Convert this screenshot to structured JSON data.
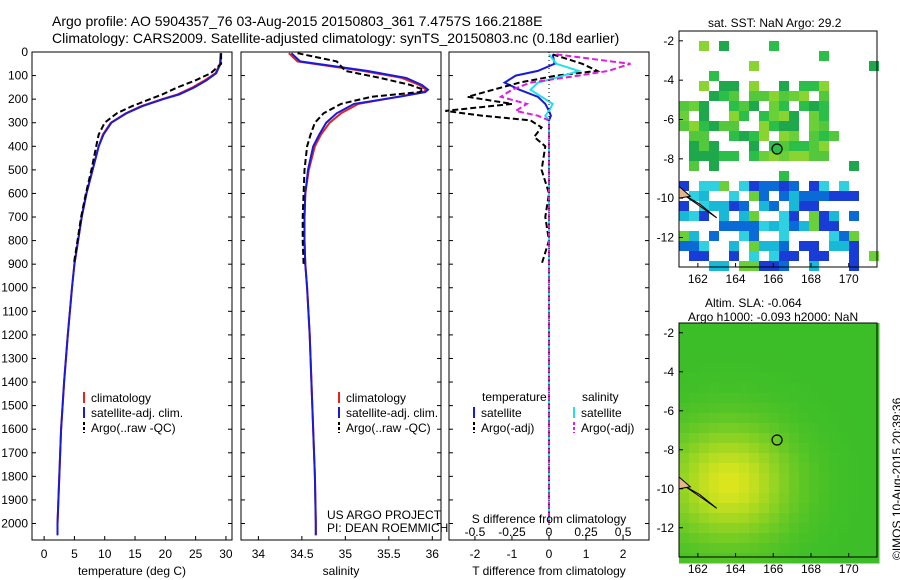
{
  "header": {
    "line1": "Argo profile: AO 5904357_76 03-Aug-2015 20150803_361 7.4757S 166.2188E",
    "line2": "Climatology: CARS2009. Satellite-adjusted climatology: synTS_20150803.nc (0.18d earlier)"
  },
  "sst_title": "sat. SST: NaN Argo: 29.2",
  "sla_title1": "Altim. SLA: -0.064",
  "sla_title2": "Argo h1000: -0.093 h2000: NaN",
  "stamp": "©IMOS 10-Aug-2015 20:39:36",
  "credit": {
    "line1": "US ARGO PROJECT",
    "line2": "PI: DEAN ROEMMICH"
  },
  "legends": {
    "profile": [
      "climatology",
      "satellite-adj. clim.",
      "Argo(..raw -QC)"
    ],
    "diff": {
      "col1_title": "temperature",
      "col2_title": "salinity",
      "col1": [
        "satellite",
        "Argo(-adj)"
      ],
      "col2": [
        "satellite",
        "Argo(-adj)"
      ]
    }
  },
  "colors": {
    "climatology": "#e8231c",
    "satellite": "#1a1adb",
    "argo": "#000000",
    "sal_satellite": "#22e0e8",
    "sal_argo": "#e01ce0"
  },
  "chart_data": [
    {
      "type": "line",
      "name": "temperature_profile",
      "xlabel": "temperature (deg C)",
      "xlim": [
        -2,
        31
      ],
      "xticks": [
        0,
        5,
        10,
        15,
        20,
        25,
        30
      ],
      "ylim": [
        2070,
        0
      ],
      "yticks": [
        0,
        100,
        200,
        300,
        400,
        500,
        600,
        700,
        800,
        900,
        1000,
        1100,
        1200,
        1300,
        1400,
        1500,
        1600,
        1700,
        1800,
        1900,
        2000
      ],
      "depth": [
        5,
        50,
        90,
        120,
        150,
        180,
        200,
        230,
        260,
        300,
        350,
        400,
        500,
        600,
        700,
        800,
        900,
        1000,
        1200,
        1400,
        1600,
        1800,
        2000,
        2050
      ],
      "series": [
        {
          "name": "climatology",
          "values": [
            29.1,
            29.0,
            28.3,
            26.5,
            24.5,
            22.0,
            19.5,
            16.0,
            13.5,
            11.0,
            9.7,
            9.0,
            8.0,
            7.0,
            6.2,
            5.6,
            5.0,
            4.6,
            3.9,
            3.3,
            2.8,
            2.5,
            2.2,
            2.2
          ]
        },
        {
          "name": "satellite-adj. clim.",
          "values": [
            29.2,
            29.1,
            28.4,
            26.8,
            24.8,
            22.3,
            19.7,
            16.2,
            13.6,
            11.1,
            9.8,
            9.0,
            8.0,
            7.0,
            6.2,
            5.6,
            5.0,
            4.6,
            3.9,
            3.3,
            2.8,
            2.5,
            2.2,
            2.2
          ]
        },
        {
          "name": "Argo(..raw -QC)",
          "values": [
            29.2,
            29.2,
            27.5,
            25.0,
            22.0,
            19.5,
            17.5,
            14.5,
            12.0,
            10.0,
            9.0,
            8.6,
            7.8,
            6.9,
            6.1,
            5.5,
            4.9,
            null,
            null,
            null,
            null,
            null,
            null,
            null
          ]
        }
      ]
    },
    {
      "type": "line",
      "name": "salinity_profile",
      "xlabel": "salinity",
      "xlim": [
        33.8,
        36.1
      ],
      "xticks": [
        34,
        34.5,
        35,
        35.5,
        36
      ],
      "ylim": [
        2070,
        0
      ],
      "depth": [
        5,
        40,
        80,
        110,
        140,
        160,
        170,
        190,
        220,
        260,
        300,
        350,
        400,
        500,
        600,
        700,
        800,
        900,
        1000,
        1200,
        1500,
        1800,
        2000,
        2050
      ],
      "series": [
        {
          "name": "climatology",
          "values": [
            34.35,
            34.45,
            35.2,
            35.65,
            35.85,
            35.93,
            35.9,
            35.6,
            35.15,
            34.95,
            34.82,
            34.72,
            34.65,
            34.58,
            34.54,
            34.53,
            34.53,
            34.54,
            34.56,
            34.59,
            34.62,
            34.65,
            34.66,
            34.66
          ]
        },
        {
          "name": "satellite-adj. clim.",
          "values": [
            34.38,
            34.48,
            35.25,
            35.7,
            35.88,
            35.95,
            35.92,
            35.62,
            35.1,
            34.9,
            34.78,
            34.7,
            34.63,
            34.57,
            34.54,
            34.53,
            34.53,
            34.54,
            34.56,
            34.59,
            34.62,
            34.65,
            34.66,
            34.66
          ]
        },
        {
          "name": "Argo(..raw -QC)",
          "values": [
            34.45,
            34.9,
            35.0,
            35.4,
            35.75,
            35.9,
            35.85,
            35.3,
            34.95,
            34.75,
            34.65,
            34.6,
            34.56,
            34.53,
            34.52,
            34.51,
            34.51,
            34.52,
            null,
            null,
            null,
            null,
            null,
            null
          ]
        }
      ]
    },
    {
      "type": "line",
      "name": "difference_profile",
      "xlabel": "T difference from climatology",
      "xlabel2": "S difference from climatology",
      "xlim": [
        -2.7,
        2.7
      ],
      "xticks": [
        -2,
        -1,
        0,
        1,
        2
      ],
      "top_ticks": [
        "-0.5",
        "-0.25",
        "0",
        "0.25",
        "0.5"
      ],
      "top_tick_pos": [
        -2,
        -1,
        0,
        1,
        2
      ],
      "ylim": [
        2070,
        0
      ],
      "depth": [
        10,
        50,
        80,
        100,
        130,
        160,
        190,
        220,
        250,
        270,
        290,
        320,
        360,
        400,
        500,
        600,
        700,
        800,
        900,
        1000,
        1200,
        1400,
        1600,
        1800,
        2000
      ],
      "series": [
        {
          "name": "temperature satellite",
          "values": [
            0.1,
            0.15,
            -0.3,
            -0.9,
            -1.2,
            -0.8,
            -0.3,
            -0.1,
            0.0,
            0.05,
            0.0,
            0.0,
            0.0,
            0.0,
            0.0,
            0.0,
            0.0,
            0.0,
            0.0,
            0.0,
            0.0,
            0.0,
            0.0,
            0.0,
            0.0
          ]
        },
        {
          "name": "temperature Argo(-adj)",
          "values": [
            0.1,
            0.9,
            1.3,
            0.2,
            -0.8,
            -1.5,
            -2.2,
            -1.0,
            -2.8,
            -1.8,
            -0.5,
            -0.2,
            -0.4,
            -0.1,
            -0.2,
            0.0,
            -0.1,
            0.0,
            -0.2,
            null,
            null,
            null,
            null,
            null,
            null
          ]
        },
        {
          "name": "salinity satellite",
          "values": [
            0.0,
            0.2,
            0.8,
            0.4,
            -0.3,
            -0.5,
            -0.2,
            0.1,
            0.0,
            -0.1,
            0.0,
            0.0,
            0.0,
            0.0,
            0.0,
            0.0,
            0.0,
            0.0,
            0.0,
            0.0,
            0.0,
            0.0,
            0.0,
            0.0,
            0.0
          ]
        },
        {
          "name": "salinity Argo(-adj)",
          "values": [
            0.2,
            2.2,
            1.6,
            0.8,
            -0.5,
            -1.0,
            -1.3,
            -0.6,
            -0.9,
            -0.3,
            0.0,
            0.0,
            0.0,
            0.0,
            0.0,
            0.0,
            0.0,
            0.0,
            0.0,
            0.0,
            0.0,
            0.0,
            0.0,
            0.0,
            0.0
          ]
        }
      ]
    },
    {
      "type": "heatmap",
      "name": "sst_map",
      "xlim": [
        161,
        171.5
      ],
      "ylim": [
        -13.5,
        -1.5
      ],
      "xticks": [
        162,
        164,
        166,
        168,
        170
      ],
      "yticks": [
        -2,
        -4,
        -6,
        -8,
        -10,
        -12
      ],
      "argo_position": [
        166.2,
        -7.5
      ]
    },
    {
      "type": "heatmap",
      "name": "sla_map",
      "xlim": [
        161,
        171.5
      ],
      "ylim": [
        -13.5,
        -1.5
      ],
      "xticks": [
        162,
        164,
        166,
        168,
        170
      ],
      "yticks": [
        -2,
        -4,
        -6,
        -8,
        -10,
        -12
      ],
      "argo_position": [
        166.2,
        -7.5
      ]
    }
  ]
}
